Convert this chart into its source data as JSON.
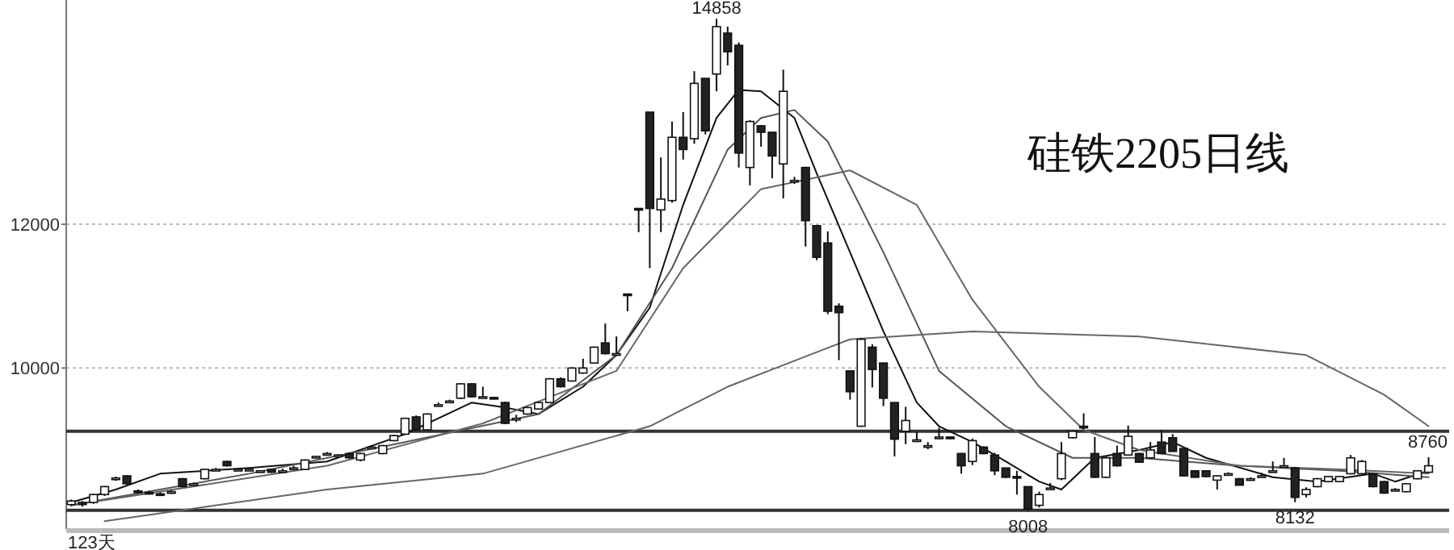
{
  "chart_data": {
    "type": "candlestick",
    "title": "硅铁2205日线",
    "categories": [
      null,
      null,
      null,
      null,
      null,
      null,
      null,
      null,
      null,
      null,
      null,
      null,
      null,
      null,
      null,
      null,
      null,
      null,
      null,
      null,
      null,
      null,
      null,
      null,
      null,
      null,
      null,
      null,
      null,
      null,
      null,
      null,
      null,
      null,
      null,
      null,
      null,
      null,
      null,
      null,
      null,
      null,
      null,
      null,
      null,
      null,
      null,
      null,
      null,
      null,
      null,
      null,
      null,
      null,
      null,
      null,
      null,
      null,
      null,
      null,
      null,
      null,
      null,
      null,
      null,
      null,
      null,
      null,
      null,
      null,
      null,
      null,
      null,
      null,
      null,
      null,
      null,
      null,
      null,
      null,
      null,
      null,
      null,
      null,
      null,
      null,
      null,
      null,
      null,
      null,
      null,
      null,
      null,
      null,
      null,
      null,
      null,
      null,
      null,
      null,
      null,
      null,
      null,
      null,
      null,
      null,
      null,
      null,
      null,
      null,
      null,
      null,
      null,
      null,
      null,
      null,
      null,
      null,
      null,
      null,
      null,
      null,
      null
    ],
    "ohlc": [
      [
        8100,
        8170,
        8080,
        8150
      ],
      [
        8130,
        8150,
        8070,
        8100
      ],
      [
        8130,
        8250,
        8110,
        8240
      ],
      [
        8240,
        8360,
        8220,
        8350
      ],
      [
        8450,
        8490,
        8430,
        8470
      ],
      [
        8500,
        8510,
        8380,
        8390
      ],
      [
        8290,
        8310,
        8260,
        8280
      ],
      [
        8270,
        8290,
        8240,
        8260
      ],
      [
        8250,
        8270,
        8220,
        8240
      ],
      [
        8270,
        8300,
        8250,
        8280
      ],
      [
        8460,
        8470,
        8340,
        8350
      ],
      [
        8380,
        8410,
        8370,
        8390
      ],
      [
        8460,
        8600,
        8450,
        8590
      ],
      [
        8580,
        8610,
        8570,
        8590
      ],
      [
        8700,
        8710,
        8630,
        8640
      ],
      [
        8580,
        8600,
        8570,
        8590
      ],
      [
        8580,
        8600,
        8570,
        8590
      ],
      [
        8560,
        8580,
        8550,
        8570
      ],
      [
        8590,
        8600,
        8540,
        8550
      ],
      [
        8560,
        8600,
        8550,
        8570
      ],
      [
        8600,
        8640,
        8590,
        8610
      ],
      [
        8590,
        8730,
        8580,
        8720
      ],
      [
        8760,
        8780,
        8750,
        8770
      ],
      [
        8800,
        8830,
        8780,
        8810
      ],
      [
        8780,
        8800,
        8760,
        8790
      ],
      [
        8810,
        8830,
        8740,
        8750
      ],
      [
        8720,
        8820,
        8700,
        8810
      ],
      [
        8890,
        8920,
        8880,
        8900
      ],
      [
        8810,
        8930,
        8800,
        8920
      ],
      [
        8990,
        9070,
        8980,
        9060
      ],
      [
        9080,
        9310,
        9070,
        9300
      ],
      [
        9320,
        9340,
        9130,
        9140
      ],
      [
        9140,
        9370,
        9130,
        9360
      ],
      [
        9480,
        9520,
        9470,
        9490
      ],
      [
        9530,
        9560,
        9520,
        9540
      ],
      [
        9580,
        9790,
        9570,
        9780
      ],
      [
        9780,
        9790,
        9590,
        9600
      ],
      [
        9590,
        9740,
        9580,
        9600
      ],
      [
        9590,
        9600,
        9570,
        9580
      ],
      [
        9520,
        9530,
        9220,
        9230
      ],
      [
        9300,
        9350,
        9250,
        9300
      ],
      [
        9360,
        9460,
        9350,
        9450
      ],
      [
        9430,
        9530,
        9420,
        9520
      ],
      [
        9520,
        9860,
        9510,
        9850
      ],
      [
        9850,
        9870,
        9730,
        9740
      ],
      [
        9820,
        10010,
        9810,
        10000
      ],
      [
        9930,
        10130,
        9920,
        10000
      ],
      [
        10070,
        10300,
        10060,
        10290
      ],
      [
        10350,
        10620,
        10190,
        10200
      ],
      [
        10190,
        10440,
        10170,
        10200
      ],
      [
        11030,
        11030,
        10790,
        11020
      ],
      [
        12220,
        12220,
        11890,
        12210
      ],
      [
        13560,
        13560,
        11390,
        12220
      ],
      [
        12200,
        12930,
        11890,
        12350
      ],
      [
        12330,
        13430,
        12300,
        13210
      ],
      [
        13210,
        13560,
        12900,
        13040
      ],
      [
        13190,
        14130,
        13120,
        13960
      ],
      [
        14030,
        14030,
        13250,
        13300
      ],
      [
        14090,
        14858,
        13850,
        14750
      ],
      [
        14660,
        14750,
        14210,
        14400
      ],
      [
        14490,
        14530,
        12790,
        12990
      ],
      [
        12790,
        13450,
        12540,
        13430
      ],
      [
        13370,
        13380,
        13080,
        13280
      ],
      [
        13280,
        13280,
        12640,
        12950
      ],
      [
        12840,
        14150,
        12360,
        13850
      ],
      [
        12600,
        12660,
        12560,
        12610
      ],
      [
        12790,
        12800,
        11690,
        12050
      ],
      [
        11980,
        11990,
        11500,
        11540
      ],
      [
        11740,
        11900,
        10750,
        10790
      ],
      [
        10860,
        10900,
        10110,
        10770
      ],
      [
        9960,
        9960,
        9560,
        9670
      ],
      [
        9190,
        10420,
        9180,
        10400
      ],
      [
        10290,
        10330,
        9730,
        9980
      ],
      [
        10070,
        10070,
        9470,
        9580
      ],
      [
        9520,
        9520,
        8770,
        9010
      ],
      [
        9120,
        9460,
        8940,
        9270
      ],
      [
        8990,
        9110,
        8970,
        9000
      ],
      [
        8920,
        8970,
        8870,
        8920
      ],
      [
        9030,
        9170,
        9010,
        9040
      ],
      [
        9040,
        9050,
        9010,
        9020
      ],
      [
        8810,
        8820,
        8530,
        8640
      ],
      [
        8700,
        9020,
        8650,
        8990
      ],
      [
        8900,
        8910,
        8800,
        8810
      ],
      [
        8790,
        8820,
        8510,
        8570
      ],
      [
        8610,
        8610,
        8470,
        8480
      ],
      [
        8490,
        8570,
        8240,
        8480
      ],
      [
        8350,
        8350,
        8008,
        8040
      ],
      [
        8090,
        8280,
        8060,
        8240
      ],
      [
        8320,
        8400,
        8300,
        8330
      ],
      [
        8460,
        8970,
        8440,
        8810
      ],
      [
        9030,
        9130,
        9020,
        9120
      ],
      [
        9190,
        9370,
        9150,
        9170
      ],
      [
        8810,
        9040,
        8470,
        8480
      ],
      [
        8480,
        8780,
        8470,
        8750
      ],
      [
        8810,
        8920,
        8630,
        8640
      ],
      [
        8790,
        9200,
        8780,
        9050
      ],
      [
        8810,
        8820,
        8680,
        8690
      ],
      [
        8750,
        8970,
        8740,
        8860
      ],
      [
        8970,
        9140,
        8800,
        8810
      ],
      [
        9030,
        9080,
        8840,
        8840
      ],
      [
        8880,
        8890,
        8490,
        8500
      ],
      [
        8570,
        8580,
        8480,
        8480
      ],
      [
        8570,
        8580,
        8480,
        8490
      ],
      [
        8440,
        8510,
        8310,
        8500
      ],
      [
        8530,
        8550,
        8510,
        8530
      ],
      [
        8460,
        8470,
        8370,
        8370
      ],
      [
        8460,
        8480,
        8440,
        8460
      ],
      [
        8500,
        8540,
        8490,
        8500
      ],
      [
        8570,
        8700,
        8560,
        8570
      ],
      [
        8640,
        8750,
        8630,
        8640
      ],
      [
        8610,
        8620,
        8132,
        8200
      ],
      [
        8240,
        8340,
        8200,
        8310
      ],
      [
        8350,
        8470,
        8340,
        8460
      ],
      [
        8420,
        8500,
        8410,
        8490
      ],
      [
        8420,
        8500,
        8410,
        8490
      ],
      [
        8530,
        8790,
        8520,
        8750
      ],
      [
        8530,
        8720,
        8520,
        8700
      ],
      [
        8530,
        8540,
        8340,
        8350
      ],
      [
        8420,
        8430,
        8250,
        8260
      ],
      [
        8310,
        8330,
        8300,
        8310
      ],
      [
        8280,
        8400,
        8270,
        8390
      ],
      [
        8460,
        8580,
        8450,
        8570
      ],
      [
        8550,
        8760,
        8540,
        8640
      ]
    ],
    "series": [
      {
        "type": "line",
        "color": "#111111",
        "values": [
          8130,
          null,
          null,
          null,
          8310,
          null,
          null,
          null,
          8530,
          null,
          null,
          null,
          null,
          null,
          null,
          null,
          8610,
          null,
          null,
          null,
          null,
          null,
          null,
          8700,
          null,
          null,
          null,
          null,
          null,
          null,
          9080,
          null,
          null,
          null,
          null,
          null,
          9520,
          null,
          null,
          9450,
          null,
          null,
          9360,
          null,
          null,
          null,
          9740,
          null,
          null,
          10180,
          null,
          null,
          10840,
          null,
          null,
          12270,
          null,
          null,
          13480,
          null,
          13870,
          null,
          13850,
          null,
          null,
          13480,
          null,
          12710,
          null,
          null,
          11610,
          null,
          null,
          10510,
          null,
          null,
          9520,
          null,
          9190,
          null,
          null,
          8970,
          null,
          null,
          8700,
          null,
          null,
          8420,
          null,
          8310,
          null,
          null,
          8750,
          null,
          null,
          null,
          8860,
          null,
          null,
          8970,
          null,
          null,
          8750,
          null,
          null,
          null,
          null,
          null,
          8480,
          null,
          null,
          null,
          8420,
          null,
          null,
          null,
          null,
          8530,
          null,
          8420,
          null,
          null,
          8570
        ]
      },
      {
        "type": "line",
        "color": "#555555",
        "values": [
          8090,
          null,
          null,
          null,
          null,
          null,
          null,
          null,
          null,
          null,
          null,
          null,
          null,
          null,
          null,
          null,
          8530,
          null,
          null,
          null,
          null,
          null,
          null,
          null,
          null,
          null,
          null,
          null,
          null,
          null,
          8970,
          null,
          null,
          null,
          null,
          null,
          null,
          null,
          null,
          null,
          null,
          null,
          9360,
          null,
          null,
          null,
          null,
          null,
          null,
          10180,
          null,
          null,
          null,
          null,
          11390,
          null,
          null,
          null,
          null,
          13040,
          null,
          null,
          13480,
          null,
          null,
          13590,
          null,
          null,
          13150,
          null,
          null,
          null,
          null,
          11610,
          null,
          null,
          null,
          null,
          9960,
          null,
          null,
          null,
          null,
          null,
          9190,
          null,
          null,
          null,
          null,
          null,
          8750,
          null,
          null,
          null,
          null,
          null,
          8750,
          null,
          null,
          null,
          null,
          null,
          null,
          null,
          null,
          8640,
          null,
          null,
          null,
          null,
          null,
          null,
          null,
          null,
          8570,
          null,
          null,
          null,
          null,
          null,
          null,
          null,
          8480
        ]
      },
      {
        "type": "line",
        "color": "#666666",
        "values": [
          8090,
          null,
          null,
          null,
          null,
          null,
          null,
          null,
          null,
          null,
          null,
          null,
          null,
          null,
          null,
          null,
          null,
          null,
          null,
          null,
          null,
          null,
          null,
          8640,
          null,
          null,
          null,
          null,
          null,
          null,
          null,
          null,
          null,
          null,
          null,
          null,
          null,
          9230,
          null,
          null,
          null,
          null,
          null,
          null,
          null,
          null,
          null,
          null,
          null,
          9960,
          null,
          null,
          null,
          null,
          null,
          11390,
          null,
          null,
          null,
          null,
          null,
          null,
          12490,
          null,
          null,
          null,
          null,
          null,
          null,
          null,
          12750,
          null,
          null,
          null,
          null,
          null,
          12270,
          null,
          null,
          null,
          null,
          10950,
          null,
          null,
          null,
          null,
          null,
          9740,
          null,
          null,
          null,
          9140,
          null,
          null,
          null,
          null,
          8860,
          null,
          null,
          null,
          null,
          null,
          null,
          null,
          null,
          8640,
          null,
          null,
          null,
          null,
          null,
          null,
          null,
          null,
          8590,
          null,
          null,
          null,
          null,
          null,
          null,
          null,
          8530
        ]
      },
      {
        "type": "line",
        "color": "#666666",
        "values": [
          null,
          null,
          null,
          7870,
          null,
          null,
          null,
          null,
          7980,
          null,
          null,
          null,
          null,
          null,
          null,
          null,
          null,
          null,
          null,
          null,
          null,
          null,
          null,
          8310,
          null,
          null,
          null,
          null,
          null,
          null,
          null,
          null,
          null,
          null,
          null,
          null,
          null,
          8530,
          null,
          null,
          null,
          null,
          null,
          null,
          null,
          null,
          null,
          null,
          null,
          null,
          null,
          null,
          9190,
          null,
          null,
          null,
          null,
          null,
          null,
          9740,
          null,
          null,
          null,
          null,
          null,
          null,
          null,
          null,
          null,
          null,
          10400,
          null,
          null,
          null,
          null,
          null,
          null,
          null,
          null,
          null,
          null,
          10510,
          null,
          null,
          null,
          null,
          null,
          null,
          null,
          null,
          null,
          null,
          null,
          null,
          null,
          null,
          10440,
          null,
          null,
          null,
          null,
          null,
          null,
          null,
          null,
          null,
          null,
          null,
          null,
          null,
          null,
          10180,
          null,
          null,
          null,
          null,
          null,
          null,
          9630,
          null,
          null,
          null,
          9190
        ]
      }
    ],
    "ylim": [
      7760,
      15120
    ],
    "yticks": [
      10000,
      12000
    ],
    "grid": "y",
    "tick_labels": "y",
    "ref_lines": [
      {
        "axis": "y",
        "value": 9120,
        "color": "#333333"
      },
      {
        "axis": "y",
        "value": 8020,
        "color": "#333333"
      }
    ],
    "annotations": [
      {
        "text": "14858",
        "y": 14858
      },
      {
        "text": "8008",
        "y": 8008
      },
      {
        "text": "8132",
        "y": 8132
      },
      {
        "text": "8760",
        "y": 8760
      },
      "123天"
    ]
  }
}
